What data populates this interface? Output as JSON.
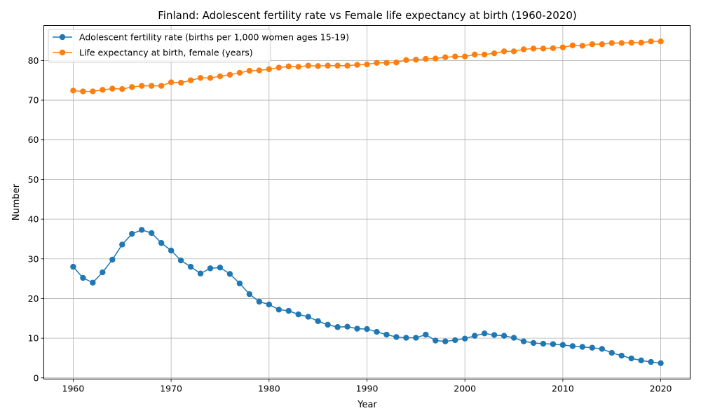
{
  "chart_data": {
    "type": "line",
    "title": "Finland: Adolescent fertility rate vs Female life expectancy at birth (1960-2020)",
    "xlabel": "Year",
    "ylabel": "Number",
    "xlim": [
      1957,
      2023
    ],
    "ylim": [
      -0.3,
      88.8
    ],
    "xticks": [
      1960,
      1970,
      1980,
      1990,
      2000,
      2010,
      2020
    ],
    "yticks": [
      0,
      10,
      20,
      30,
      40,
      50,
      60,
      70,
      80
    ],
    "grid": true,
    "legend_position": "upper-left",
    "x": [
      1960,
      1961,
      1962,
      1963,
      1964,
      1965,
      1966,
      1967,
      1968,
      1969,
      1970,
      1971,
      1972,
      1973,
      1974,
      1975,
      1976,
      1977,
      1978,
      1979,
      1980,
      1981,
      1982,
      1983,
      1984,
      1985,
      1986,
      1987,
      1988,
      1989,
      1990,
      1991,
      1992,
      1993,
      1994,
      1995,
      1996,
      1997,
      1998,
      1999,
      2000,
      2001,
      2002,
      2003,
      2004,
      2005,
      2006,
      2007,
      2008,
      2009,
      2010,
      2011,
      2012,
      2013,
      2014,
      2015,
      2016,
      2017,
      2018,
      2019,
      2020
    ],
    "series": [
      {
        "name": "Adolescent fertility rate (births per 1,000 women ages 15-19)",
        "color": "#1f77b4",
        "values": [
          28.0,
          25.2,
          24.0,
          26.6,
          29.8,
          33.6,
          36.3,
          37.3,
          36.5,
          34.0,
          32.1,
          29.6,
          28.0,
          26.3,
          27.6,
          27.8,
          26.2,
          23.8,
          21.1,
          19.2,
          18.5,
          17.2,
          16.9,
          16.0,
          15.4,
          14.3,
          13.4,
          12.8,
          12.9,
          12.4,
          12.3,
          11.6,
          10.9,
          10.3,
          10.1,
          10.1,
          10.9,
          9.4,
          9.2,
          9.5,
          9.9,
          10.6,
          11.2,
          10.8,
          10.6,
          10.1,
          9.2,
          8.8,
          8.6,
          8.5,
          8.3,
          8.0,
          7.8,
          7.6,
          7.3,
          6.3,
          5.6,
          4.9,
          4.4,
          4.0,
          3.7
        ]
      },
      {
        "name": "Life expectancy at birth, female (years)",
        "color": "#ff7f0e",
        "values": [
          72.4,
          72.2,
          72.2,
          72.6,
          72.9,
          72.8,
          73.3,
          73.6,
          73.6,
          73.6,
          74.5,
          74.4,
          75.0,
          75.6,
          75.6,
          76.0,
          76.4,
          76.9,
          77.4,
          77.5,
          77.8,
          78.2,
          78.5,
          78.4,
          78.7,
          78.6,
          78.7,
          78.7,
          78.7,
          78.9,
          79.0,
          79.4,
          79.4,
          79.5,
          80.1,
          80.2,
          80.4,
          80.5,
          80.8,
          81.0,
          81.0,
          81.5,
          81.5,
          81.8,
          82.3,
          82.3,
          82.8,
          83.0,
          83.0,
          83.1,
          83.3,
          83.8,
          83.7,
          84.1,
          84.1,
          84.4,
          84.4,
          84.5,
          84.5,
          84.8,
          84.8
        ]
      }
    ]
  }
}
